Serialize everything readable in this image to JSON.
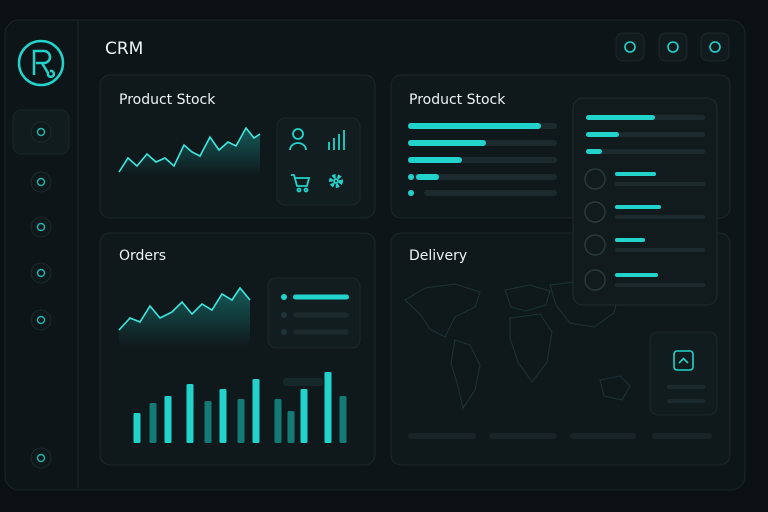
{
  "header": {
    "title": "CRM"
  },
  "cards": [
    {
      "title": "Product Stock"
    },
    {
      "title": "Product Stock"
    },
    {
      "title": "Orders"
    },
    {
      "title": "Delivery"
    }
  ]
}
